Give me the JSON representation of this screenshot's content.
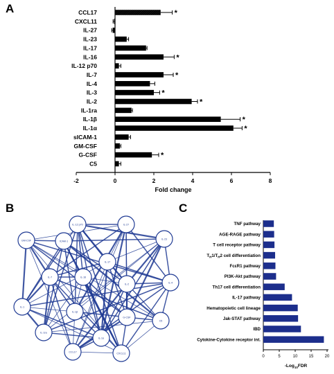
{
  "panels": {
    "a": "A",
    "b": "B",
    "c": "C"
  },
  "chart_data": [
    {
      "type": "bar",
      "orientation": "horizontal",
      "categories": [
        "CCL17",
        "CXCL11",
        "IL-27",
        "IL-23",
        "IL-17",
        "IL-16",
        "IL-12 p70",
        "IL-7",
        "IL-4",
        "IL-3",
        "IL-2",
        "IL-1ra",
        "IL-1β",
        "IL-1α",
        "sICAM-1",
        "GM-CSF",
        "G-CSF",
        "C5"
      ],
      "values": [
        2.35,
        -0.05,
        -0.12,
        0.6,
        1.6,
        2.5,
        0.2,
        2.5,
        1.8,
        2.0,
        3.95,
        0.85,
        5.45,
        6.1,
        0.7,
        0.25,
        1.9,
        0.2
      ],
      "errors": [
        0.6,
        0.05,
        0.05,
        0.1,
        0.05,
        0.55,
        0.1,
        0.5,
        0.25,
        0.3,
        0.3,
        0.05,
        1.0,
        0.45,
        0.1,
        0.05,
        0.35,
        0.1
      ],
      "significant": [
        true,
        false,
        false,
        false,
        false,
        true,
        false,
        true,
        false,
        true,
        true,
        false,
        true,
        true,
        false,
        false,
        true,
        false
      ],
      "sig_marker": "*",
      "xlabel": "Fold change",
      "xlim": [
        -2,
        8
      ],
      "xticks": [
        "-2",
        "0",
        "2",
        "4",
        "6",
        "8"
      ],
      "grid": false
    },
    {
      "type": "network",
      "nodes": [
        "IL-12 p70",
        "IL-27",
        "GM-CSF",
        "ICAM-1",
        "IL-23",
        "IL-17",
        "IL-7",
        "IL-16",
        "IL-2",
        "IL-4",
        "IL-1",
        "IL-1β",
        "G-CSF",
        "C5",
        "IL-1ra",
        "IL-1α",
        "CCL17",
        "CXCL11"
      ]
    },
    {
      "type": "bar",
      "orientation": "horizontal",
      "categories": [
        "TNF pathway",
        "AGE-RAGE pathway",
        "T cell receptor pathway",
        "TH1/TH2 cell differentiation",
        "FcεR1 pathway",
        "PI3K-Akt pathway",
        "Th17 cell differentiation",
        "IL-17 pathway",
        "Hematopoietic cell lineage",
        "Jak-STAT pathway",
        "IBD",
        "Cytokine-Cytokine receptor int."
      ],
      "values": [
        3.3,
        3.4,
        3.5,
        3.7,
        3.8,
        4.0,
        6.7,
        9.0,
        10.8,
        10.9,
        11.8,
        19.0
      ],
      "xlabel": "-Log10FDR",
      "xlim": [
        0,
        20
      ],
      "xticks": [
        "0",
        "5",
        "10",
        "15",
        "20"
      ],
      "bar_color": "#1c2e8c",
      "grid": false
    }
  ]
}
